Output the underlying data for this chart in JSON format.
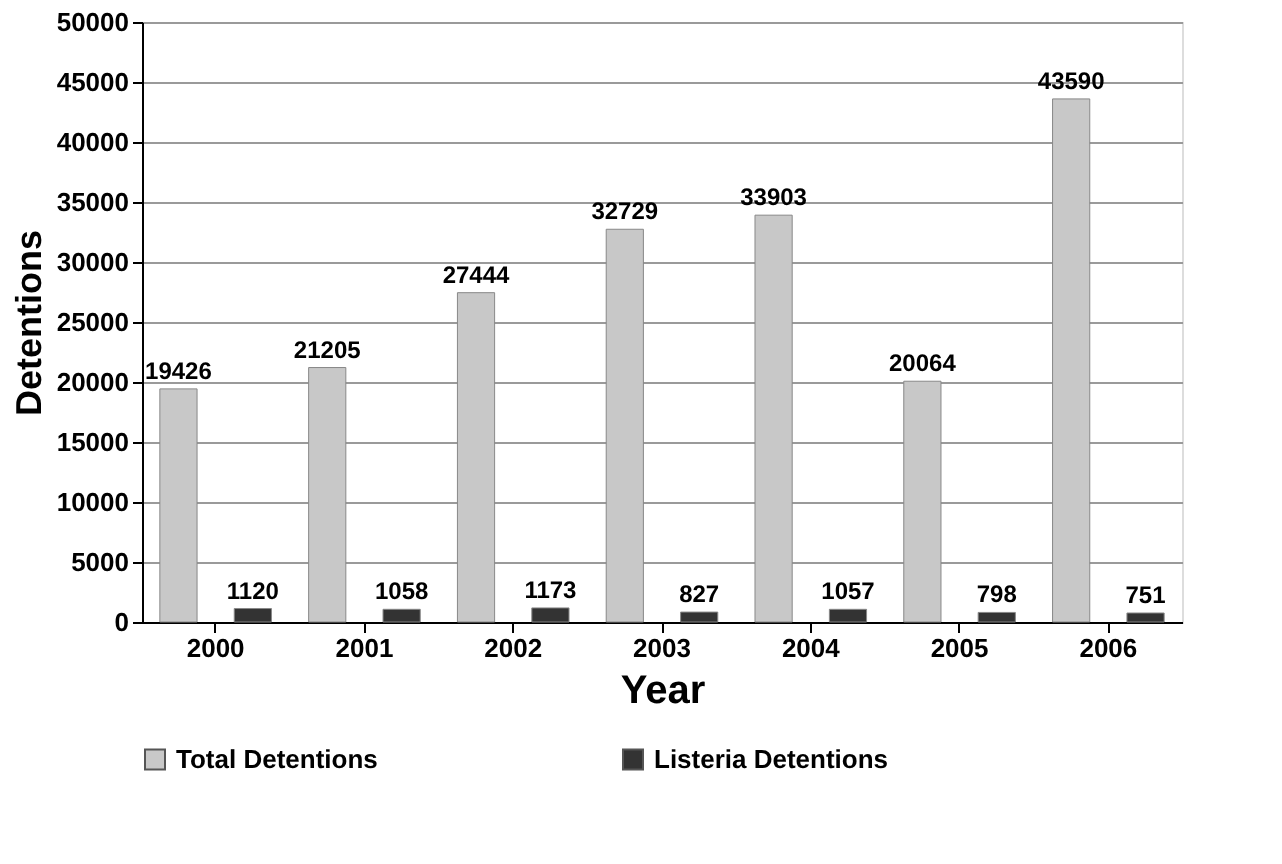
{
  "chart_data": {
    "type": "bar",
    "xlabel": "Year",
    "ylabel": "Detentions",
    "categories": [
      "2000",
      "2001",
      "2002",
      "2003",
      "2004",
      "2005",
      "2006"
    ],
    "series": [
      {
        "name": "Total Detentions",
        "color": "#c8c8c8",
        "values": [
          19426,
          21205,
          27444,
          32729,
          33903,
          20064,
          43590
        ]
      },
      {
        "name": "Listeria Detentions",
        "color": "#333333",
        "values": [
          1120,
          1058,
          1173,
          827,
          1057,
          798,
          751
        ]
      }
    ],
    "ylim": [
      0,
      50000
    ],
    "yticks": [
      0,
      5000,
      10000,
      15000,
      20000,
      25000,
      30000,
      35000,
      40000,
      45000,
      50000
    ],
    "grid": "y",
    "legend": "bottom",
    "data_labels": true
  }
}
